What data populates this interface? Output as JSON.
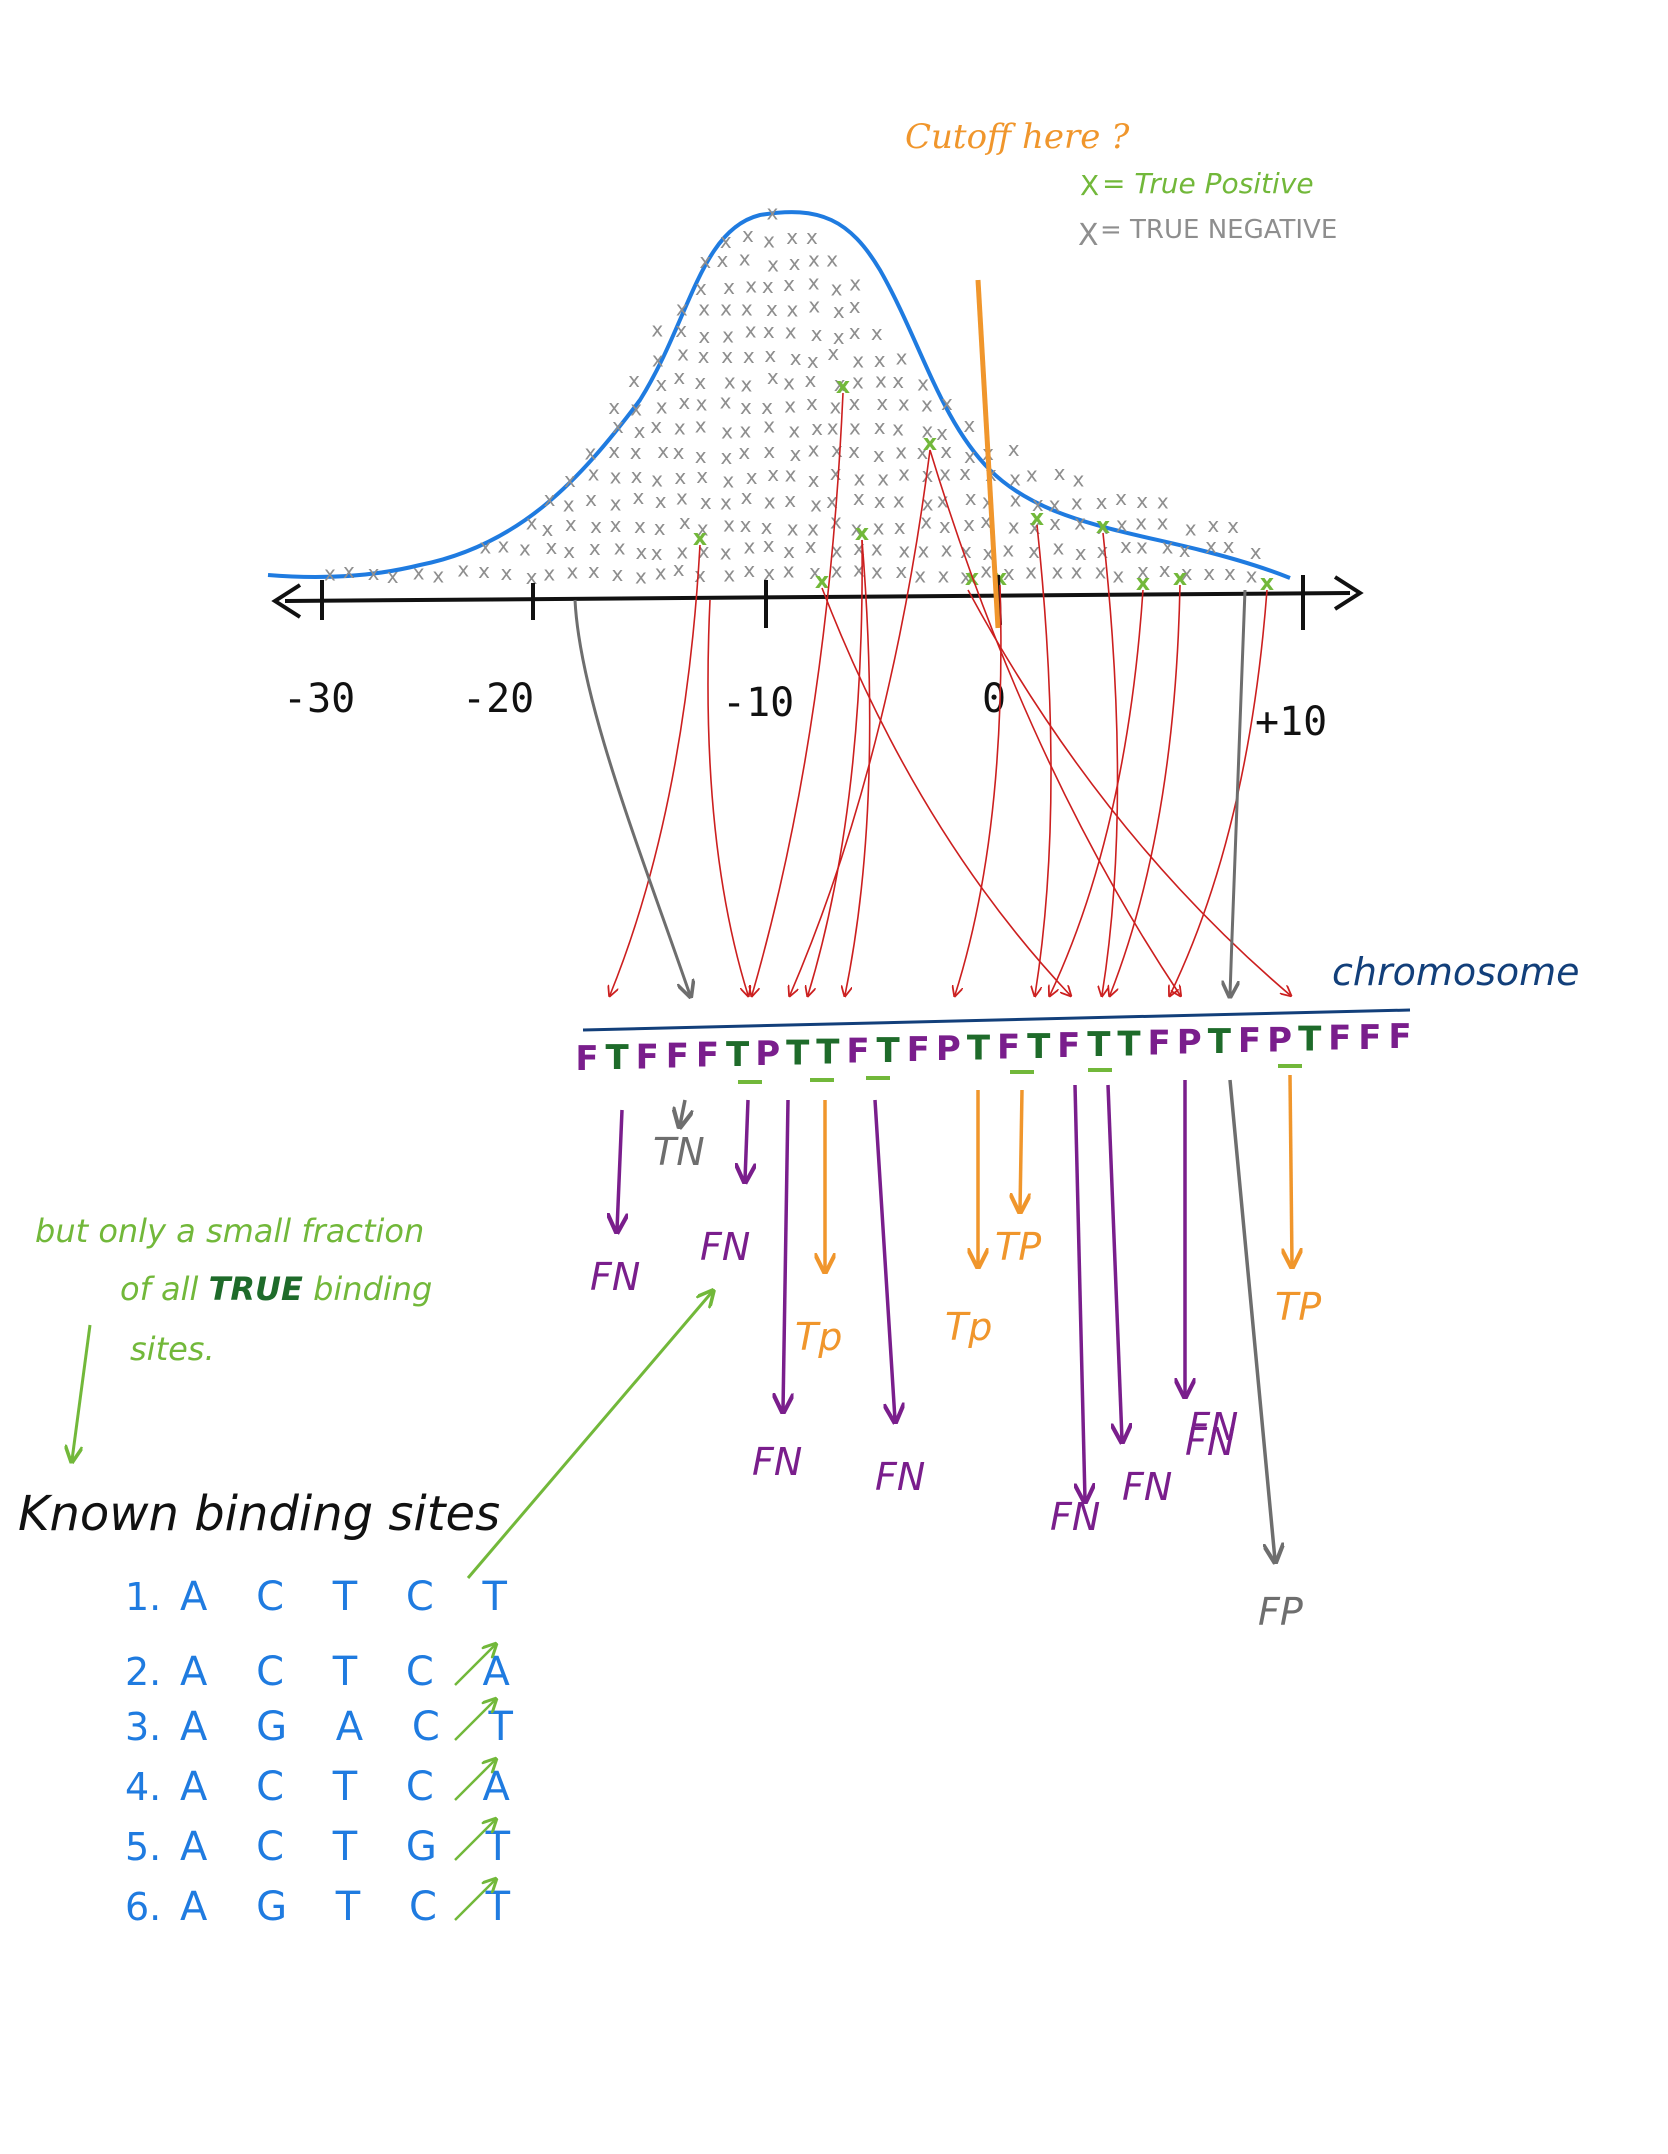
{
  "colors": {
    "curve": "#1f7be0",
    "axis": "#111111",
    "true_positive": "#72b83a",
    "true_negative": "#8e8e8e",
    "cutoff": "#f0962c",
    "red_arrow": "#cc1f1f",
    "purple": "#7a1e8c",
    "green_dark": "#1e6b2a",
    "orange": "#f0962c",
    "gray": "#6e6e6e",
    "blue_text": "#1f7be0",
    "chromosome": "#123f7a",
    "note_green": "#72b83a"
  },
  "cutoff_label": "Cutoff here ?",
  "legend": {
    "tp_symbol": "X",
    "tp_text": "= True Positive",
    "tn_symbol": "X",
    "tn_text": "= TRUE NEGATIVE"
  },
  "axis_ticks": [
    "-30",
    "-20",
    "-10",
    "0",
    "+10"
  ],
  "chromosome_label": "chromosome",
  "sequence_letters": [
    "F",
    "T",
    "F",
    "F",
    "F",
    "T",
    "P",
    "T",
    "T",
    "F",
    "T",
    "F",
    "P",
    "T",
    "F",
    "T",
    "F",
    "T",
    "T",
    "F",
    "P",
    "T",
    "F",
    "P",
    "T",
    "F",
    "F",
    "F"
  ],
  "outcomes": [
    "FN",
    "FN",
    "TN",
    "Tp",
    "FN",
    "FN",
    "Tp",
    "TP",
    "FN",
    "FN",
    "FN",
    "FN",
    "TP",
    "FP"
  ],
  "note": [
    "but only a small fraction",
    "of all TRUE binding",
    "sites."
  ],
  "known_title": "Known binding sites",
  "known_sites": [
    {
      "num": "1.",
      "seq": "A C T C T"
    },
    {
      "num": "2.",
      "seq": "A C T C A"
    },
    {
      "num": "3.",
      "seq": "A G A C T"
    },
    {
      "num": "4.",
      "seq": "A C T C A"
    },
    {
      "num": "5.",
      "seq": "A C T G T"
    },
    {
      "num": "6.",
      "seq": "A G T C T"
    }
  ]
}
